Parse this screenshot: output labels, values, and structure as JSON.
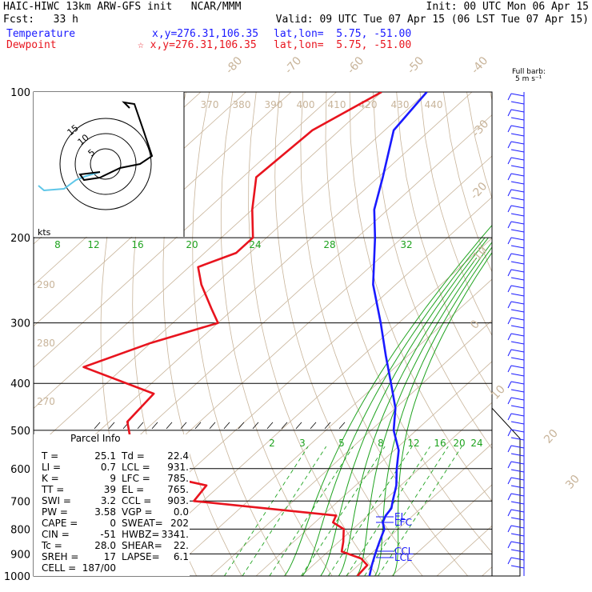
{
  "header": {
    "line1_left": "HAIC-HIWC 13km ARW-GFS init   NCAR/MMM",
    "line1_right": "Init: 00 UTC Mon 06 Apr 15",
    "line2_left": "Fcst:   33 h",
    "line2_right": "Valid: 09 UTC Tue 07 Apr 15 (06 LST Tue 07 Apr 15)",
    "temp_label": "Temperature",
    "temp_xy": "x,y=276.31,106.35",
    "temp_latlon": "lat,lon=  5.75, -51.00",
    "dew_label": "Dewpoint",
    "dew_xy": "☆ x,y=276.31,106.35",
    "dew_latlon": "lat,lon=  5.75, -51.00",
    "barb_title": "Full barb:",
    "barb_units": "5 m s⁻¹"
  },
  "chart_data": {
    "type": "line",
    "title": "Skew-T log-P sounding",
    "pressure_levels": [
      100,
      200,
      300,
      400,
      500,
      600,
      700,
      800,
      900,
      1000
    ],
    "isotherm_labels": [
      "-80",
      "-70",
      "-60",
      "-50",
      "-40",
      "-30",
      "-20",
      "-10",
      "0",
      "10",
      "20",
      "30",
      "40"
    ],
    "mixing_ratio_top": [
      "8",
      "12",
      "16",
      "20",
      "24",
      "28",
      "32"
    ],
    "mixing_ratio_mid": [
      "2",
      "3",
      "5",
      "8",
      "12",
      "16",
      "20",
      "24"
    ],
    "theta_labels": [
      "370",
      "380",
      "390",
      "400",
      "410",
      "420",
      "430",
      "440"
    ],
    "theta_left_labels": [
      "290",
      "280",
      "270"
    ],
    "series": [
      {
        "name": "Temperature",
        "color": "#1a1aff",
        "points": [
          [
            100,
            -80
          ],
          [
            120,
            -78
          ],
          [
            150,
            -69
          ],
          [
            175,
            -63
          ],
          [
            200,
            -56
          ],
          [
            250,
            -45
          ],
          [
            300,
            -34
          ],
          [
            350,
            -25
          ],
          [
            400,
            -17
          ],
          [
            450,
            -10
          ],
          [
            500,
            -5
          ],
          [
            550,
            1
          ],
          [
            600,
            5
          ],
          [
            650,
            9
          ],
          [
            700,
            12
          ],
          [
            725,
            13.5
          ],
          [
            750,
            14
          ],
          [
            775,
            15
          ],
          [
            800,
            17
          ],
          [
            825,
            18
          ],
          [
            850,
            19
          ],
          [
            875,
            20
          ],
          [
            900,
            21
          ],
          [
            950,
            23
          ],
          [
            1000,
            25.1
          ]
        ]
      },
      {
        "name": "Dewpoint",
        "color": "#e8141e",
        "points": [
          [
            100,
            -90
          ],
          [
            120,
            -96
          ],
          [
            150,
            -97
          ],
          [
            175,
            -90
          ],
          [
            200,
            -83
          ],
          [
            215,
            -83
          ],
          [
            230,
            -88
          ],
          [
            250,
            -83
          ],
          [
            280,
            -75
          ],
          [
            300,
            -70
          ],
          [
            330,
            -80
          ],
          [
            370,
            -89
          ],
          [
            420,
            -67
          ],
          [
            480,
            -66
          ],
          [
            540,
            -59
          ],
          [
            570,
            -63
          ],
          [
            600,
            -54
          ],
          [
            650,
            -33
          ],
          [
            700,
            -32
          ],
          [
            750,
            3
          ],
          [
            775,
            4
          ],
          [
            800,
            8
          ],
          [
            850,
            11
          ],
          [
            890,
            13
          ],
          [
            920,
            19
          ],
          [
            950,
            22
          ],
          [
            1000,
            22.4
          ]
        ]
      }
    ],
    "parcel_info": {
      "title": "Parcel Info",
      "rows": [
        [
          "T  =",
          "25.1",
          "Td =",
          "22.4"
        ],
        [
          "LI =",
          "0.7",
          "LCL =",
          "931."
        ],
        [
          "K  =",
          "9",
          "LFC =",
          "785."
        ],
        [
          "TT =",
          "39",
          "EL  =",
          "765."
        ],
        [
          "SWI =",
          "3.2",
          "CCL =",
          "903."
        ],
        [
          "PW =",
          "3.58",
          "VGP =",
          "0.0"
        ],
        [
          "CAPE =",
          "0",
          "SWEAT=",
          "202"
        ],
        [
          "CIN =",
          "-51",
          "HWBZ=",
          "3341."
        ],
        [
          "Tc =",
          "28.0",
          "SHEAR=",
          "22."
        ],
        [
          "SREH =",
          "17",
          "LAPSE=",
          "6.1"
        ],
        [
          "CELL =",
          "187/00",
          "",
          ""
        ]
      ]
    },
    "level_markers": [
      "EL",
      "LFC",
      "CCL",
      "LCL"
    ],
    "hodograph": {
      "ring_labels": [
        "15",
        "10",
        "5"
      ],
      "units": "kts"
    }
  }
}
